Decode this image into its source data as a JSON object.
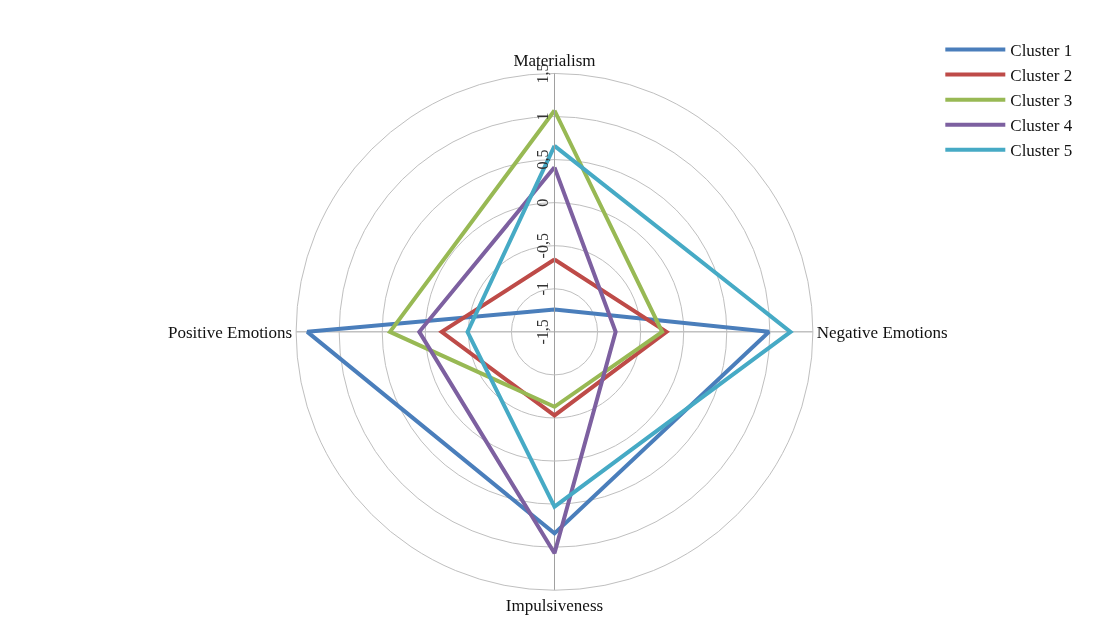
{
  "chart_data": {
    "type": "radar",
    "categories": [
      "Materialism",
      "Negative Emotions",
      "Impulsiveness",
      "Positive Emotions"
    ],
    "series": [
      {
        "name": "Cluster 1",
        "color": "#4a7ebb",
        "values": [
          -1.24,
          0.99,
          0.84,
          1.37
        ]
      },
      {
        "name": "Cluster 2",
        "color": "#be4b48",
        "values": [
          -0.66,
          -0.2,
          -0.53,
          -0.19
        ]
      },
      {
        "name": "Cluster 3",
        "color": "#98b954",
        "values": [
          1.07,
          -0.25,
          -0.63,
          0.41
        ]
      },
      {
        "name": "Cluster 4",
        "color": "#7d60a0",
        "values": [
          0.41,
          -0.79,
          1.07,
          0.07
        ]
      },
      {
        "name": "Cluster 5",
        "color": "#46aac5",
        "values": [
          0.66,
          1.24,
          0.53,
          -0.49
        ]
      }
    ],
    "ylim": [
      -1.5,
      1.5
    ],
    "yticks": [
      {
        "value": -1.5,
        "label": "-1,5"
      },
      {
        "value": -1,
        "label": "-1"
      },
      {
        "value": -0.5,
        "label": "-0,5"
      },
      {
        "value": 0,
        "label": "0"
      },
      {
        "value": 0.5,
        "label": "0,5"
      },
      {
        "value": 1,
        "label": "1"
      },
      {
        "value": 1.5,
        "label": "1,5"
      }
    ],
    "grid": true,
    "legend": "top right",
    "marker": "none",
    "line_style": "solid"
  }
}
